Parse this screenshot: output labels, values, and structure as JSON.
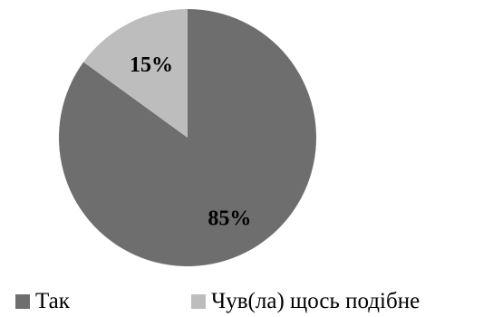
{
  "chart_data": {
    "type": "pie",
    "categories": [
      "Так",
      "Чув(ла) щось подібне"
    ],
    "values": [
      85,
      15
    ],
    "value_labels": [
      "85%",
      "15%"
    ],
    "colors": [
      "#6e6e6e",
      "#bdbdbd"
    ],
    "legend": [
      "Так",
      "Чув(ла) щось подібне"
    ],
    "legend_position": "bottom",
    "start_angle": "12 o'clock, counterclockwise"
  },
  "legend": {
    "items": [
      {
        "label": "Так",
        "color": "#6e6e6e"
      },
      {
        "label": "Чув(ла) щось подібне",
        "color": "#bdbdbd"
      }
    ]
  }
}
